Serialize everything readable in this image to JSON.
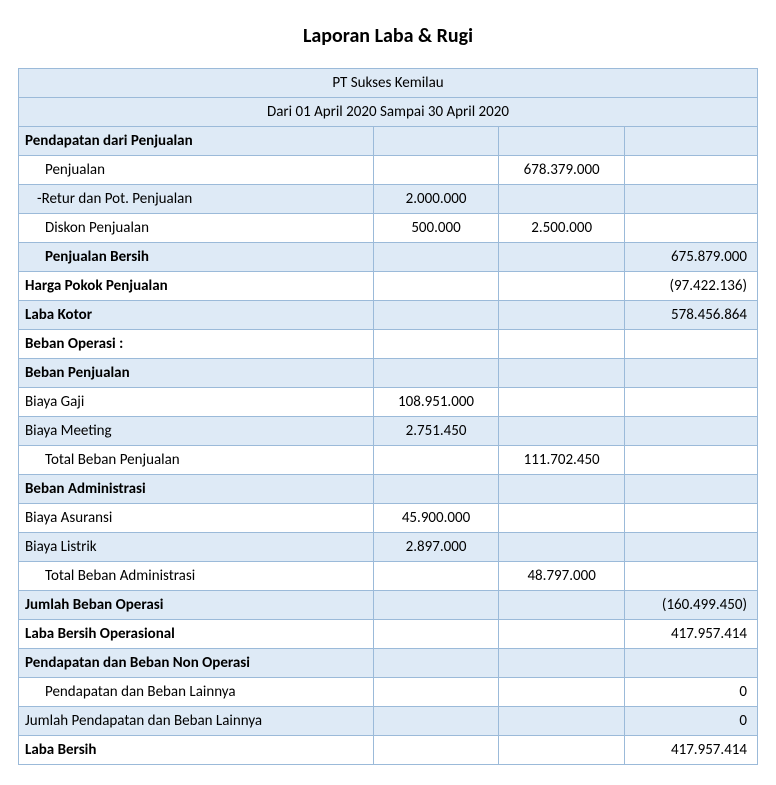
{
  "title": "Laporan Laba & Rugi",
  "company": "PT Sukses Kemilau",
  "period": "Dari 01 April 2020 Sampai 30 April 2020",
  "colors": {
    "border": "#9bbad9",
    "alt_bg": "#deeaf6",
    "bg": "#ffffff",
    "text": "#000000"
  },
  "column_widths_pct": [
    48,
    17,
    17,
    18
  ],
  "rows": [
    {
      "label": "Pendapatan dari Penjualan",
      "bold": true,
      "alt": true
    },
    {
      "label": "Penjualan",
      "indent": 1,
      "c2": "678.379.000"
    },
    {
      "label": "-Retur dan Pot. Penjualan",
      "indent": "neg",
      "c1": "2.000.000",
      "alt": true
    },
    {
      "label": "Diskon Penjualan",
      "indent": 1,
      "c1": "500.000",
      "c2": "2.500.000"
    },
    {
      "label": "Penjualan Bersih",
      "indent": 1,
      "bold": true,
      "c3": "675.879.000",
      "alt": true
    },
    {
      "label": "Harga Pokok Penjualan",
      "bold": true,
      "c3": "(97.422.136)"
    },
    {
      "label": "Laba Kotor",
      "bold": true,
      "c3": "578.456.864",
      "alt": true
    },
    {
      "label": "Beban Operasi :",
      "bold": true
    },
    {
      "label": "Beban Penjualan",
      "bold": true,
      "alt": true
    },
    {
      "label": "Biaya Gaji",
      "c1": "108.951.000"
    },
    {
      "label": "Biaya Meeting",
      "c1": "2.751.450",
      "alt": true
    },
    {
      "label": "Total Beban Penjualan",
      "indent": 1,
      "c2": "111.702.450"
    },
    {
      "label": "Beban Administrasi",
      "bold": true,
      "alt": true
    },
    {
      "label": "Biaya Asuransi",
      "c1": "45.900.000"
    },
    {
      "label": "Biaya Listrik",
      "c1": "2.897.000",
      "alt": true
    },
    {
      "label": "Total Beban Administrasi",
      "indent": 1,
      "c2": "48.797.000"
    },
    {
      "label": "Jumlah Beban Operasi",
      "bold": true,
      "c3": "(160.499.450)",
      "alt": true
    },
    {
      "label": "Laba Bersih Operasional",
      "bold": true,
      "c3": "417.957.414"
    },
    {
      "label": "Pendapatan dan Beban Non Operasi",
      "bold": true,
      "alt": true
    },
    {
      "label": "Pendapatan dan Beban Lainnya",
      "indent": 1,
      "c3": "0"
    },
    {
      "label": "Jumlah Pendapatan dan Beban Lainnya",
      "c3": "0",
      "alt": true
    },
    {
      "label": "Laba Bersih",
      "bold": true,
      "c3": "417.957.414"
    }
  ]
}
